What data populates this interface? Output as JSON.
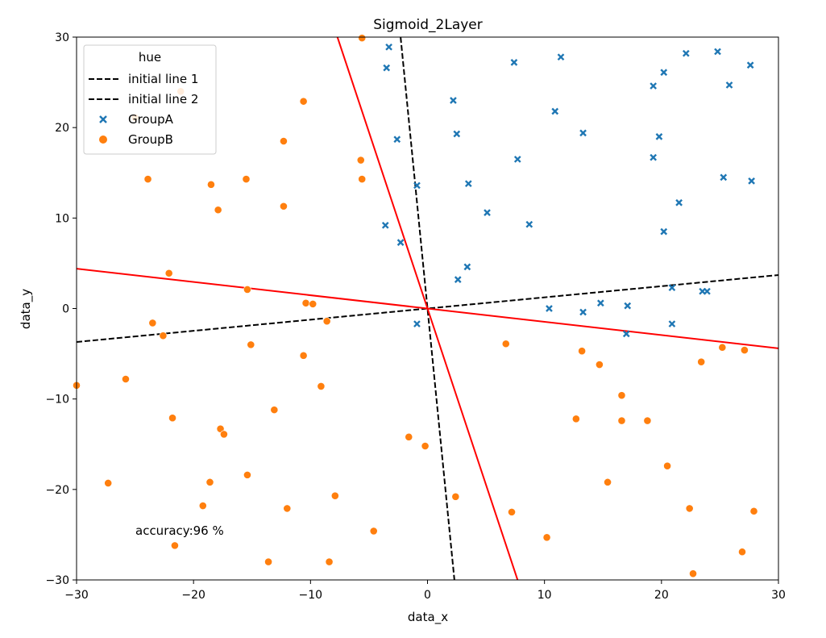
{
  "chart_data": {
    "type": "scatter",
    "title": "Sigmoid_2Layer",
    "xlabel": "data_x",
    "ylabel": "data_y",
    "xlim": [
      -30,
      30
    ],
    "ylim": [
      -30,
      30
    ],
    "xticks": [
      -30,
      -20,
      -10,
      0,
      10,
      20,
      30
    ],
    "yticks": [
      -30,
      -20,
      -10,
      0,
      10,
      20,
      30
    ],
    "xtick_labels": [
      "−30",
      "−20",
      "−10",
      "0",
      "10",
      "20",
      "30"
    ],
    "ytick_labels": [
      "−30",
      "−20",
      "−10",
      "0",
      "10",
      "20",
      "30"
    ],
    "grid": false,
    "legend": {
      "title": "hue",
      "position": "top-left",
      "entries": [
        "initial line 1",
        "initial line 2",
        "GroupA",
        "GroupB"
      ]
    },
    "annotation": {
      "text": "accuracy:96 %",
      "x": -25,
      "y": -25
    },
    "colors": {
      "groupA": "#1f77b4",
      "groupB": "#ff7f0e",
      "initial_lines": "#000000",
      "trained_lines": "#ff0000"
    },
    "lines": [
      {
        "name": "initial line 1",
        "style": "dashed",
        "color": "#000000",
        "points": [
          [
            -2.3,
            30
          ],
          [
            2.3,
            -30
          ]
        ]
      },
      {
        "name": "initial line 2",
        "style": "dashed",
        "color": "#000000",
        "points": [
          [
            -30,
            -3.7
          ],
          [
            30,
            3.7
          ]
        ]
      },
      {
        "style": "solid",
        "color": "#ff0000",
        "points": [
          [
            -7.7,
            30
          ],
          [
            7.7,
            -30
          ]
        ]
      },
      {
        "style": "solid",
        "color": "#ff0000",
        "points": [
          [
            -30,
            4.4
          ],
          [
            30,
            -4.4
          ]
        ]
      }
    ],
    "series": [
      {
        "name": "GroupA",
        "marker": "x",
        "color": "#1f77b4",
        "points": [
          [
            -3.3,
            28.9
          ],
          [
            -3.5,
            26.6
          ],
          [
            -2.6,
            18.7
          ],
          [
            -0.9,
            13.6
          ],
          [
            -3.6,
            9.2
          ],
          [
            -2.3,
            7.3
          ],
          [
            2.2,
            23.0
          ],
          [
            2.5,
            19.3
          ],
          [
            3.5,
            13.8
          ],
          [
            5.1,
            10.6
          ],
          [
            3.4,
            4.6
          ],
          [
            2.6,
            3.2
          ],
          [
            -0.9,
            -1.7
          ],
          [
            7.4,
            27.2
          ],
          [
            11.4,
            27.8
          ],
          [
            10.9,
            21.8
          ],
          [
            13.3,
            19.4
          ],
          [
            7.7,
            16.5
          ],
          [
            8.7,
            9.3
          ],
          [
            10.4,
            0.0
          ],
          [
            13.3,
            -0.4
          ],
          [
            14.8,
            0.6
          ],
          [
            17.1,
            0.3
          ],
          [
            17.0,
            -2.8
          ],
          [
            20.9,
            2.3
          ],
          [
            20.9,
            -1.7
          ],
          [
            23.5,
            1.9
          ],
          [
            23.9,
            1.9
          ],
          [
            19.3,
            24.6
          ],
          [
            20.2,
            26.1
          ],
          [
            22.1,
            28.2
          ],
          [
            24.8,
            28.4
          ],
          [
            25.8,
            24.7
          ],
          [
            27.6,
            26.9
          ],
          [
            19.8,
            19.0
          ],
          [
            19.3,
            16.7
          ],
          [
            21.5,
            11.7
          ],
          [
            20.2,
            8.5
          ],
          [
            25.3,
            14.5
          ],
          [
            27.7,
            14.1
          ]
        ]
      },
      {
        "name": "GroupB",
        "marker": "o",
        "color": "#ff7f0e",
        "points": [
          [
            -5.6,
            29.9
          ],
          [
            -21.1,
            24.0
          ],
          [
            -25.0,
            21.1
          ],
          [
            -10.6,
            22.9
          ],
          [
            -12.3,
            18.5
          ],
          [
            -5.7,
            16.4
          ],
          [
            -5.6,
            14.3
          ],
          [
            -15.5,
            14.3
          ],
          [
            -23.9,
            14.3
          ],
          [
            -18.5,
            13.7
          ],
          [
            -17.9,
            10.9
          ],
          [
            -12.3,
            11.3
          ],
          [
            -22.1,
            3.9
          ],
          [
            -15.4,
            2.1
          ],
          [
            -10.4,
            0.6
          ],
          [
            -9.8,
            0.5
          ],
          [
            -8.6,
            -1.4
          ],
          [
            -23.5,
            -1.6
          ],
          [
            -22.6,
            -3.0
          ],
          [
            -15.1,
            -4.0
          ],
          [
            -10.6,
            -5.2
          ],
          [
            -9.1,
            -8.6
          ],
          [
            -25.8,
            -7.8
          ],
          [
            -30.0,
            -8.5
          ],
          [
            -13.1,
            -11.2
          ],
          [
            -21.8,
            -12.1
          ],
          [
            -17.7,
            -13.3
          ],
          [
            -17.4,
            -13.9
          ],
          [
            -1.6,
            -14.2
          ],
          [
            -0.2,
            -15.2
          ],
          [
            -15.4,
            -18.4
          ],
          [
            -27.3,
            -19.3
          ],
          [
            -18.6,
            -19.2
          ],
          [
            -7.9,
            -20.7
          ],
          [
            -12.0,
            -22.1
          ],
          [
            -19.2,
            -21.8
          ],
          [
            -21.6,
            -26.2
          ],
          [
            -13.6,
            -28.0
          ],
          [
            -8.4,
            -28.0
          ],
          [
            -4.6,
            -24.6
          ],
          [
            2.4,
            -20.8
          ],
          [
            6.7,
            -3.9
          ],
          [
            13.2,
            -4.7
          ],
          [
            14.7,
            -6.2
          ],
          [
            16.6,
            -9.6
          ],
          [
            12.7,
            -12.2
          ],
          [
            16.6,
            -12.4
          ],
          [
            18.8,
            -12.4
          ],
          [
            15.4,
            -19.2
          ],
          [
            7.2,
            -22.5
          ],
          [
            10.2,
            -25.3
          ],
          [
            20.5,
            -17.4
          ],
          [
            22.4,
            -22.1
          ],
          [
            22.7,
            -29.3
          ],
          [
            23.4,
            -5.9
          ],
          [
            25.2,
            -4.3
          ],
          [
            27.1,
            -4.6
          ],
          [
            26.9,
            -26.9
          ],
          [
            27.9,
            -22.4
          ]
        ]
      }
    ]
  }
}
